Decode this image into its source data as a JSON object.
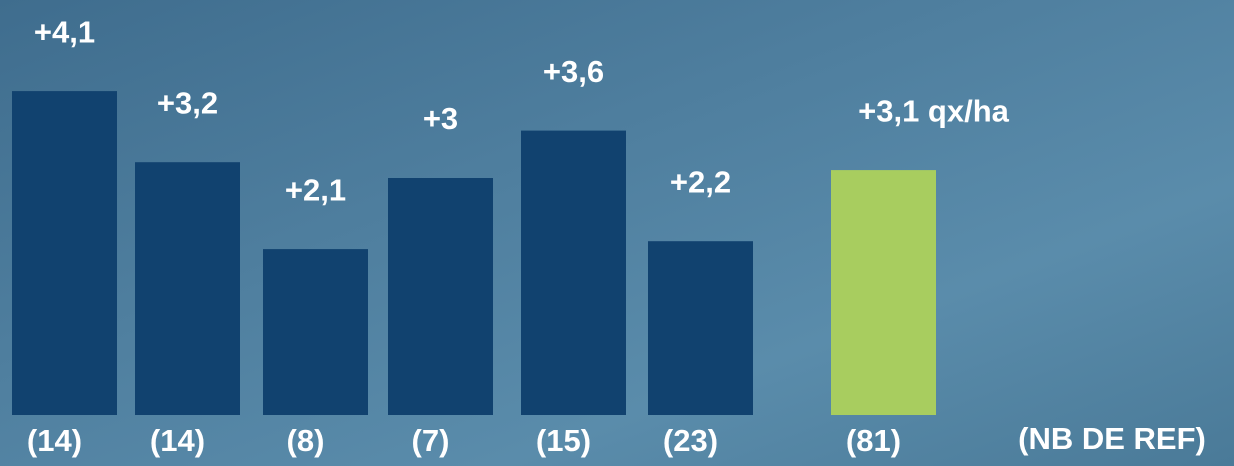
{
  "chart_data": {
    "type": "bar",
    "categories": [
      "(14)",
      "(14)",
      "(8)",
      "(7)",
      "(15)",
      "(23)",
      "(81)"
    ],
    "values": [
      4.1,
      3.2,
      2.1,
      3,
      3.6,
      2.2,
      3.1
    ],
    "value_labels": [
      "+4,1",
      "+3,2",
      "+2,1",
      "+3",
      "+3,6",
      "+2,2",
      "+3,1 qx/ha"
    ],
    "colors": [
      "#11426f",
      "#11426f",
      "#11426f",
      "#11426f",
      "#11426f",
      "#11426f",
      "#a8cd5f"
    ],
    "x_label": "(NB DE REF)"
  }
}
